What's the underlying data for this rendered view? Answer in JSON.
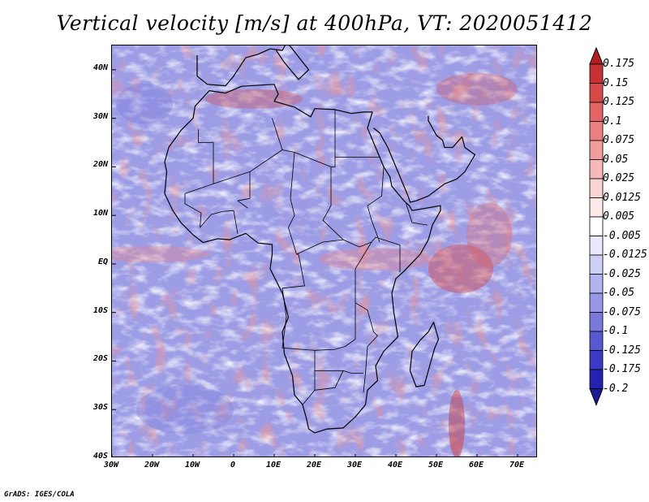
{
  "title": "Vertical velocity [m/s] at 400hPa, VT: 2020051412",
  "credit": "GrADS: IGES/COLA",
  "map": {
    "lon_range": [
      -30,
      75
    ],
    "lat_range": [
      -40,
      45
    ],
    "lat_ticks": [
      {
        "lat": 40,
        "label": "40N"
      },
      {
        "lat": 30,
        "label": "30N"
      },
      {
        "lat": 20,
        "label": "20N"
      },
      {
        "lat": 10,
        "label": "10N"
      },
      {
        "lat": 0,
        "label": "EQ"
      },
      {
        "lat": -10,
        "label": "10S"
      },
      {
        "lat": -20,
        "label": "20S"
      },
      {
        "lat": -30,
        "label": "30S"
      },
      {
        "lat": -40,
        "label": "40S"
      }
    ],
    "lon_ticks": [
      {
        "lon": -30,
        "label": "30W"
      },
      {
        "lon": -20,
        "label": "20W"
      },
      {
        "lon": -10,
        "label": "10W"
      },
      {
        "lon": 0,
        "label": "0"
      },
      {
        "lon": 10,
        "label": "10E"
      },
      {
        "lon": 20,
        "label": "20E"
      },
      {
        "lon": 30,
        "label": "30E"
      },
      {
        "lon": 40,
        "label": "40E"
      },
      {
        "lon": 50,
        "label": "50E"
      },
      {
        "lon": 60,
        "label": "60E"
      },
      {
        "lon": 70,
        "label": "70E"
      }
    ]
  },
  "colorbar": {
    "labels": [
      "0.175",
      "0.15",
      "0.125",
      "0.1",
      "0.075",
      "0.05",
      "0.025",
      "0.0125",
      "0.005",
      "-0.005",
      "-0.0125",
      "-0.025",
      "-0.05",
      "-0.075",
      "-0.1",
      "-0.125",
      "-0.175",
      "-0.2"
    ],
    "colors": [
      "#b31e23",
      "#c73335",
      "#d84a4a",
      "#e36464",
      "#ec8080",
      "#f29d9d",
      "#f6b9b9",
      "#fad3d3",
      "#fde9e9",
      "#ffffff",
      "#e9e9fb",
      "#cfcff6",
      "#b3b3ef",
      "#9797e6",
      "#7979dc",
      "#5858d0",
      "#3a3ac2",
      "#2323b0",
      "#1a1a99"
    ]
  }
}
